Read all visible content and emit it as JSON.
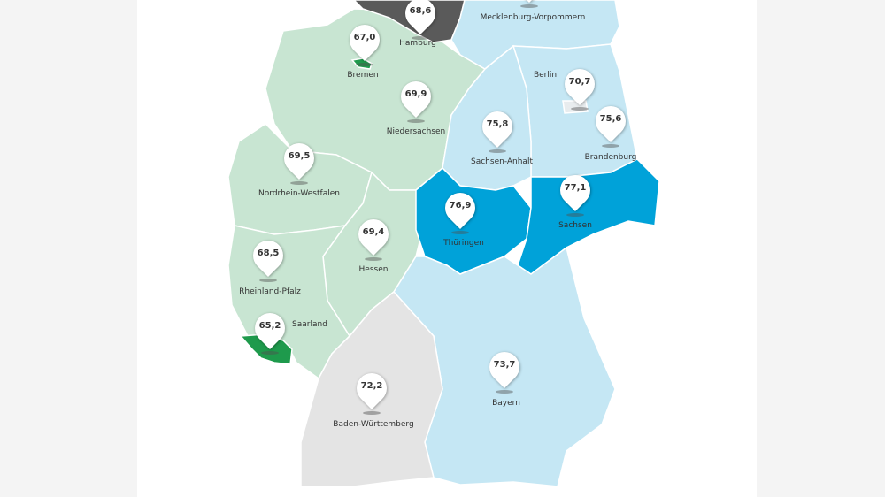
{
  "colors": {
    "light_green": "#c8e5d2",
    "dark_green": "#1e9a4c",
    "light_blue": "#c5e7f4",
    "blue": "#00a2d9",
    "light_grey": "#e4e4e4",
    "dark_grey": "#5a5a5a"
  },
  "states": [
    {
      "name": "Hamburg",
      "value": "68,6"
    },
    {
      "name": "Bremen",
      "value": "67,0"
    },
    {
      "name": "Niedersachsen",
      "value": "69,9"
    },
    {
      "name": "Mecklenburg-Vorpommern",
      "value": ""
    },
    {
      "name": "Berlin",
      "value": "70,7"
    },
    {
      "name": "Brandenburg",
      "value": "75,6"
    },
    {
      "name": "Sachsen-Anhalt",
      "value": "75,8"
    },
    {
      "name": "Nordrhein-Westfalen",
      "value": "69,5"
    },
    {
      "name": "Sachsen",
      "value": "77,1"
    },
    {
      "name": "Thüringen",
      "value": "76,9"
    },
    {
      "name": "Hessen",
      "value": "69,4"
    },
    {
      "name": "Rheinland-Pfalz",
      "value": "68,5"
    },
    {
      "name": "Saarland",
      "value": "65,2"
    },
    {
      "name": "Baden-Württemberg",
      "value": "72,2"
    },
    {
      "name": "Bayern",
      "value": "73,7"
    }
  ]
}
